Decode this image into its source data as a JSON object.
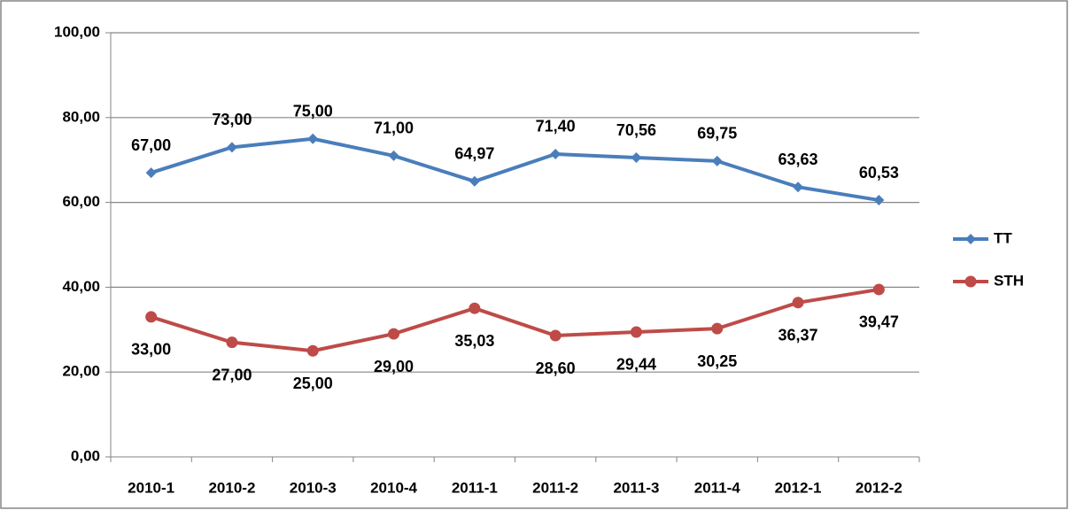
{
  "chart_data": {
    "type": "line",
    "categories": [
      "2010-1",
      "2010-2",
      "2010-3",
      "2010-4",
      "2011-1",
      "2011-2",
      "2011-3",
      "2011-4",
      "2012-1",
      "2012-2"
    ],
    "series": [
      {
        "name": "TT",
        "color": "#4a7ebb",
        "marker": "diamond",
        "label_position": "above",
        "values": [
          67,
          73,
          75,
          71,
          64.97,
          71.4,
          70.56,
          69.75,
          63.63,
          60.53
        ],
        "value_labels": [
          "67,00",
          "73,00",
          "75,00",
          "71,00",
          "64,97",
          "71,40",
          "70,56",
          "69,75",
          "63,63",
          "60,53"
        ]
      },
      {
        "name": "STH",
        "color": "#be4b48",
        "marker": "circle",
        "label_position": "below",
        "values": [
          33,
          27,
          25,
          29,
          35.03,
          28.6,
          29.44,
          30.25,
          36.37,
          39.47
        ],
        "value_labels": [
          "33,00",
          "27,00",
          "25,00",
          "29,00",
          "35,03",
          "28,60",
          "29,44",
          "30,25",
          "36,37",
          "39,47"
        ]
      }
    ],
    "ylim": [
      0,
      100
    ],
    "yticks": [
      {
        "value": 0,
        "label": "0,00"
      },
      {
        "value": 20,
        "label": "20,00"
      },
      {
        "value": 40,
        "label": "40,00"
      },
      {
        "value": 60,
        "label": "60,00"
      },
      {
        "value": 80,
        "label": "80,00"
      },
      {
        "value": 100,
        "label": "100,00"
      }
    ],
    "grid": true,
    "legend": "right"
  }
}
